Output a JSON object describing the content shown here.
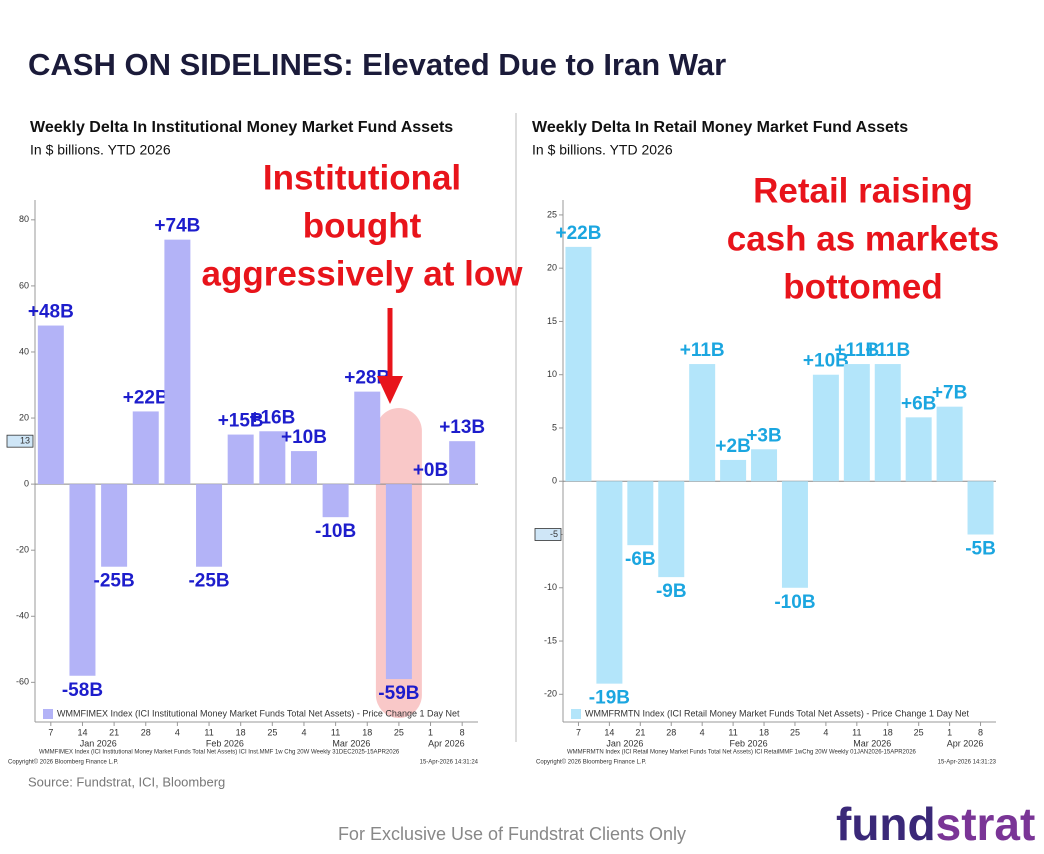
{
  "page": {
    "title": "CASH ON SIDELINES: Elevated Due to Iran War",
    "source": "Source: Fundstrat, ICI, Bloomberg",
    "footer": "For Exclusive Use of Fundstrat Clients Only",
    "logo": [
      "fund",
      "strat"
    ]
  },
  "chart_data": [
    {
      "type": "bar",
      "title": "Weekly Delta In Institutional Money Market Fund Assets",
      "subtitle": "In $ billions. YTD 2026",
      "categories": [
        "7",
        "14",
        "21",
        "28",
        "4",
        "11",
        "18",
        "25",
        "4",
        "11",
        "18",
        "25",
        "1",
        "8"
      ],
      "month_labels": [
        "Jan 2026",
        "Feb 2026",
        "Mar 2026",
        "Apr 2026"
      ],
      "values": [
        48,
        -58,
        -25,
        22,
        74,
        -25,
        15,
        16,
        10,
        -10,
        28,
        -59,
        0,
        13
      ],
      "value_labels": [
        "+48B",
        "-58B",
        "-25B",
        "+22B",
        "+74B",
        "-25B",
        "+15B",
        "+16B",
        "+10B",
        "-10B",
        "+28B",
        "-59B",
        "+0B",
        "+13B"
      ],
      "color": "#b3b3f7",
      "label_color": "#1d1dcc",
      "ylim": [
        -72,
        86
      ],
      "yticks": [
        -60,
        -40,
        -20,
        0,
        20,
        40,
        60,
        80
      ],
      "last_value": 13,
      "legend": "WMMFIMEX Index (ICI Institutional Money Market Funds Total Net Assets) - Price Change 1 Day Net",
      "footnote": "WMMFIMEX Index (ICI Institutional Money Market Funds Total Net Assets) ICI Inst.MMF 1w Chg 20W Weekly 31DEC2025-15APR2026",
      "copyright": "Copyright© 2026 Bloomberg Finance L.P.",
      "timestamp": "15-Apr-2026 14:31:24",
      "annotation": [
        "Institutional",
        "bought",
        "aggressively at low"
      ]
    },
    {
      "type": "bar",
      "title": "Weekly Delta In Retail Money Market Fund Assets",
      "subtitle": "In $ billions. YTD 2026",
      "categories": [
        "7",
        "14",
        "21",
        "28",
        "4",
        "11",
        "18",
        "25",
        "4",
        "11",
        "18",
        "25",
        "1",
        "8"
      ],
      "month_labels": [
        "Jan 2026",
        "Feb 2026",
        "Mar 2026",
        "Apr 2026"
      ],
      "values": [
        22,
        -19,
        -6,
        -9,
        11,
        2,
        3,
        -10,
        10,
        11,
        11,
        6,
        7,
        -5
      ],
      "value_labels": [
        "+22B",
        "-19B",
        "-6B",
        "-9B",
        "+11B",
        "+2B",
        "+3B",
        "-10B",
        "+10B",
        "+11B",
        "+11B",
        "+6B",
        "+7B",
        "-5B"
      ],
      "color": "#b3e5fa",
      "label_color": "#1ba6e0",
      "ylim": [
        -22.6,
        26.4
      ],
      "yticks": [
        -20,
        -15,
        -10,
        -5,
        0,
        5,
        10,
        15,
        20,
        25
      ],
      "last_value": -5,
      "legend": "WMMFRMTN Index (ICI Retail Money Market Funds Total Net Assets) - Price Change 1 Day Net",
      "footnote": "WMMFRMTN Index (ICI Retail Money Market Funds Total Net Assets) ICI RetailMMF 1wChg 20W Weekly 01JAN2026-15APR2026",
      "copyright": "Copyright© 2026 Bloomberg Finance L.P.",
      "timestamp": "15-Apr-2026 14:31:23",
      "annotation": [
        "Retail raising",
        "cash as markets",
        "bottomed"
      ]
    }
  ]
}
